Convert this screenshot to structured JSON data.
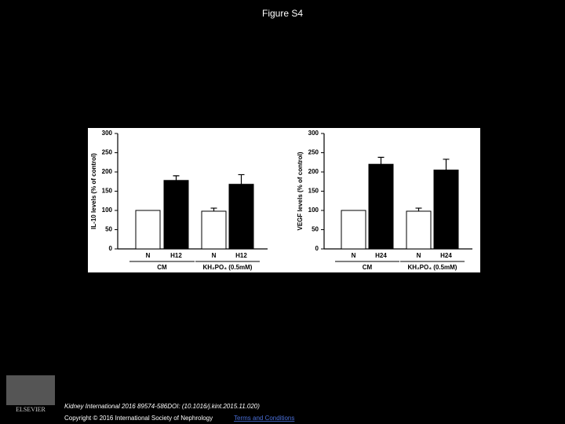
{
  "header": {
    "title": "Figure S4"
  },
  "chart_data": [
    {
      "type": "bar",
      "y_label": "IL-10 levels (% of control)",
      "categories": [
        "N",
        "H12",
        "N",
        "H12"
      ],
      "values": [
        100,
        178,
        98,
        168
      ],
      "errors": [
        null,
        12,
        8,
        25
      ],
      "colors": [
        "#ffffff",
        "#000000",
        "#ffffff",
        "#000000"
      ],
      "groups": [
        "CM",
        "KH₂PO₄ (0.5mM)"
      ],
      "ylim": [
        0,
        300
      ],
      "yticks": [
        0,
        50,
        100,
        150,
        200,
        250,
        300
      ],
      "grid": false
    },
    {
      "type": "bar",
      "y_label": "VEGF levels (% of control)",
      "categories": [
        "N",
        "H24",
        "N",
        "H24"
      ],
      "values": [
        100,
        220,
        98,
        205
      ],
      "errors": [
        null,
        18,
        8,
        28
      ],
      "colors": [
        "#ffffff",
        "#000000",
        "#ffffff",
        "#000000"
      ],
      "groups": [
        "CM",
        "KH₂PO₄ (0.5mM)"
      ],
      "ylim": [
        0,
        300
      ],
      "yticks": [
        0,
        50,
        100,
        150,
        200,
        250,
        300
      ],
      "grid": false
    }
  ],
  "footer": {
    "logo": "ELSEVIER",
    "citation": "Kidney International 2016 89574-586DOI: (10.1016/j.kint.2015.11.020)",
    "copyright": "Copyright © 2016 International Society of Nephrology",
    "link": "Terms and Conditions"
  }
}
